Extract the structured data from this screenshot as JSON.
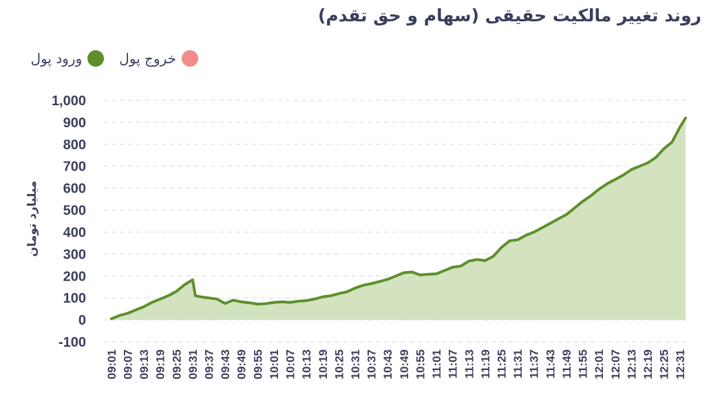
{
  "colors": {
    "inflow": "#5e8f2c",
    "inflow_fill": "#d3e3c0",
    "outflow": "#f28b8b",
    "text": "#3a3f5c",
    "grid": "#e6e6e6"
  },
  "legend": {
    "inflow_label": "ورود پول",
    "outflow_label": "خروج پول"
  },
  "chart_data": {
    "type": "area",
    "title": "روند تغییر مالکیت حقیقی (سهام و حق تقدم)",
    "ylabel": "میلیارد تومان",
    "xlabel": "",
    "ylim": [
      -100,
      1000
    ],
    "yticks": [
      "-100",
      "0",
      "100",
      "200",
      "300",
      "400",
      "500",
      "600",
      "700",
      "800",
      "900",
      "1,000"
    ],
    "categories": [
      "09:01",
      "09:07",
      "09:13",
      "09:19",
      "09:25",
      "09:31",
      "09:37",
      "09:43",
      "09:49",
      "09:55",
      "10:01",
      "10:07",
      "10:13",
      "10:19",
      "10:25",
      "10:31",
      "10:37",
      "10:43",
      "10:49",
      "10:55",
      "11:01",
      "11:07",
      "11:13",
      "11:19",
      "11:25",
      "11:31",
      "11:37",
      "11:43",
      "11:49",
      "11:55",
      "12:01",
      "12:07",
      "12:13",
      "12:19",
      "12:25",
      "12:31"
    ],
    "grid": true,
    "legend_position": "top-left",
    "series": [
      {
        "name": "ورود پول",
        "x": [
          "09:01",
          "09:04",
          "09:07",
          "09:10",
          "09:13",
          "09:16",
          "09:19",
          "09:22",
          "09:25",
          "09:28",
          "09:31",
          "09:32",
          "09:34",
          "09:37",
          "09:40",
          "09:43",
          "09:46",
          "09:49",
          "09:52",
          "09:55",
          "09:58",
          "10:01",
          "10:04",
          "10:07",
          "10:10",
          "10:13",
          "10:16",
          "10:19",
          "10:22",
          "10:25",
          "10:28",
          "10:31",
          "10:34",
          "10:37",
          "10:40",
          "10:43",
          "10:46",
          "10:49",
          "10:52",
          "10:55",
          "10:58",
          "11:01",
          "11:04",
          "11:07",
          "11:10",
          "11:13",
          "11:16",
          "11:19",
          "11:22",
          "11:25",
          "11:28",
          "11:31",
          "11:34",
          "11:37",
          "11:40",
          "11:43",
          "11:46",
          "11:49",
          "11:52",
          "11:55",
          "11:58",
          "12:01",
          "12:04",
          "12:07",
          "12:10",
          "12:13",
          "12:16",
          "12:19",
          "12:22",
          "12:25",
          "12:28",
          "12:31",
          "12:33"
        ],
        "values": [
          5,
          20,
          30,
          45,
          60,
          80,
          95,
          110,
          130,
          160,
          183,
          110,
          105,
          100,
          95,
          75,
          90,
          82,
          78,
          72,
          74,
          80,
          82,
          80,
          85,
          88,
          95,
          105,
          110,
          120,
          128,
          145,
          158,
          165,
          175,
          185,
          200,
          215,
          218,
          205,
          208,
          210,
          225,
          240,
          245,
          268,
          275,
          270,
          290,
          330,
          360,
          365,
          385,
          400,
          420,
          440,
          460,
          480,
          510,
          540,
          565,
          595,
          620,
          640,
          660,
          685,
          700,
          715,
          740,
          780,
          810,
          880,
          920
        ]
      },
      {
        "name": "خروج پول",
        "x": [],
        "values": []
      }
    ]
  }
}
